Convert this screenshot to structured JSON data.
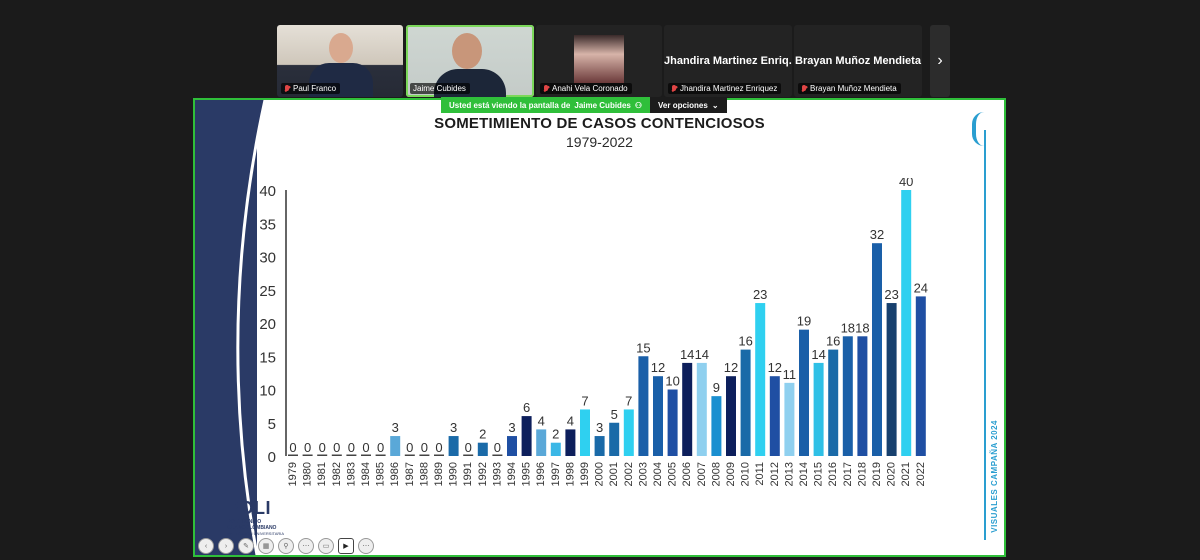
{
  "participants": [
    {
      "name": "Paul Franco",
      "muted": true
    },
    {
      "name": "Jaime Cubides",
      "muted": false,
      "active": true
    },
    {
      "name": "Anahi Vela Coronado",
      "muted": true
    },
    {
      "name": "Jhandira Martinez Enriquez",
      "display": "Jhandira Martinez Enriq...",
      "muted": true
    },
    {
      "name": "Brayan Muñoz Mendieta",
      "display": "Brayan Muñoz Mendieta",
      "muted": true
    }
  ],
  "share_banner": {
    "viewing_text": "Usted está viendo la pantalla de",
    "presenter": "Jaime Cubides",
    "options_label": "Ver opciones"
  },
  "slide": {
    "title": "SOMETIMIENTO DE CASOS CONTENCIOSOS",
    "subtitle": "1979-2022",
    "side_text": "VISUALES CAMPAÑA 2024",
    "logo_brand": "POLI",
    "logo_sub1": "POLITÉCNICO",
    "logo_sub2": "GRANCOLOMBIANO",
    "logo_sub3": "INSTITUCIÓN UNIVERSITARIA"
  },
  "chart_data": {
    "type": "bar",
    "title": "SOMETIMIENTO DE CASOS CONTENCIOSOS",
    "subtitle": "1979-2022",
    "xlabel": "",
    "ylabel": "",
    "ylim": [
      0,
      40
    ],
    "yticks": [
      0,
      5,
      10,
      15,
      20,
      25,
      30,
      35,
      40
    ],
    "categories": [
      "1979",
      "1980",
      "1981",
      "1982",
      "1983",
      "1984",
      "1985",
      "1986",
      "1987",
      "1988",
      "1989",
      "1990",
      "1991",
      "1992",
      "1993",
      "1994",
      "1995",
      "1996",
      "1997",
      "1998",
      "1999",
      "2000",
      "2001",
      "2002",
      "2003",
      "2004",
      "2005",
      "2006",
      "2007",
      "2008",
      "2009",
      "2010",
      "2011",
      "2012",
      "2013",
      "2014",
      "2015",
      "2016",
      "2017",
      "2018",
      "2019",
      "2020",
      "2021",
      "2022"
    ],
    "values": [
      0,
      0,
      0,
      0,
      0,
      0,
      0,
      3,
      0,
      0,
      0,
      3,
      0,
      2,
      0,
      3,
      6,
      4,
      2,
      4,
      7,
      3,
      5,
      7,
      15,
      12,
      10,
      14,
      14,
      9,
      12,
      16,
      23,
      12,
      11,
      19,
      14,
      16,
      18,
      18,
      32,
      23,
      40,
      24
    ],
    "colors": [
      "#2a8fc9",
      "#2a8fc9",
      "#2a8fc9",
      "#2a8fc9",
      "#2a8fc9",
      "#2a8fc9",
      "#2a8fc9",
      "#5aa8d8",
      "#2a8fc9",
      "#2a8fc9",
      "#2a8fc9",
      "#1a6aa8",
      "#1a6aa8",
      "#1a6aa8",
      "#1a6aa8",
      "#1f4fa3",
      "#0d1f5c",
      "#5aa8d8",
      "#3bb7e6",
      "#0d1f5c",
      "#2fd0f0",
      "#1a6aa8",
      "#1a6aa8",
      "#2fd0f0",
      "#1a5fa8",
      "#1a5fa8",
      "#1f4fa3",
      "#0d1f5c",
      "#8fd0ef",
      "#1a8fd0",
      "#0d1f5c",
      "#1a6aa8",
      "#2fd0f0",
      "#1f4fa3",
      "#8fd0ef",
      "#1a5fa8",
      "#2fc0e6",
      "#1a6aa8",
      "#1a5fa8",
      "#1f4fa3",
      "#1a5fa8",
      "#17406e",
      "#2fd0f0",
      "#1f4fa3"
    ]
  }
}
